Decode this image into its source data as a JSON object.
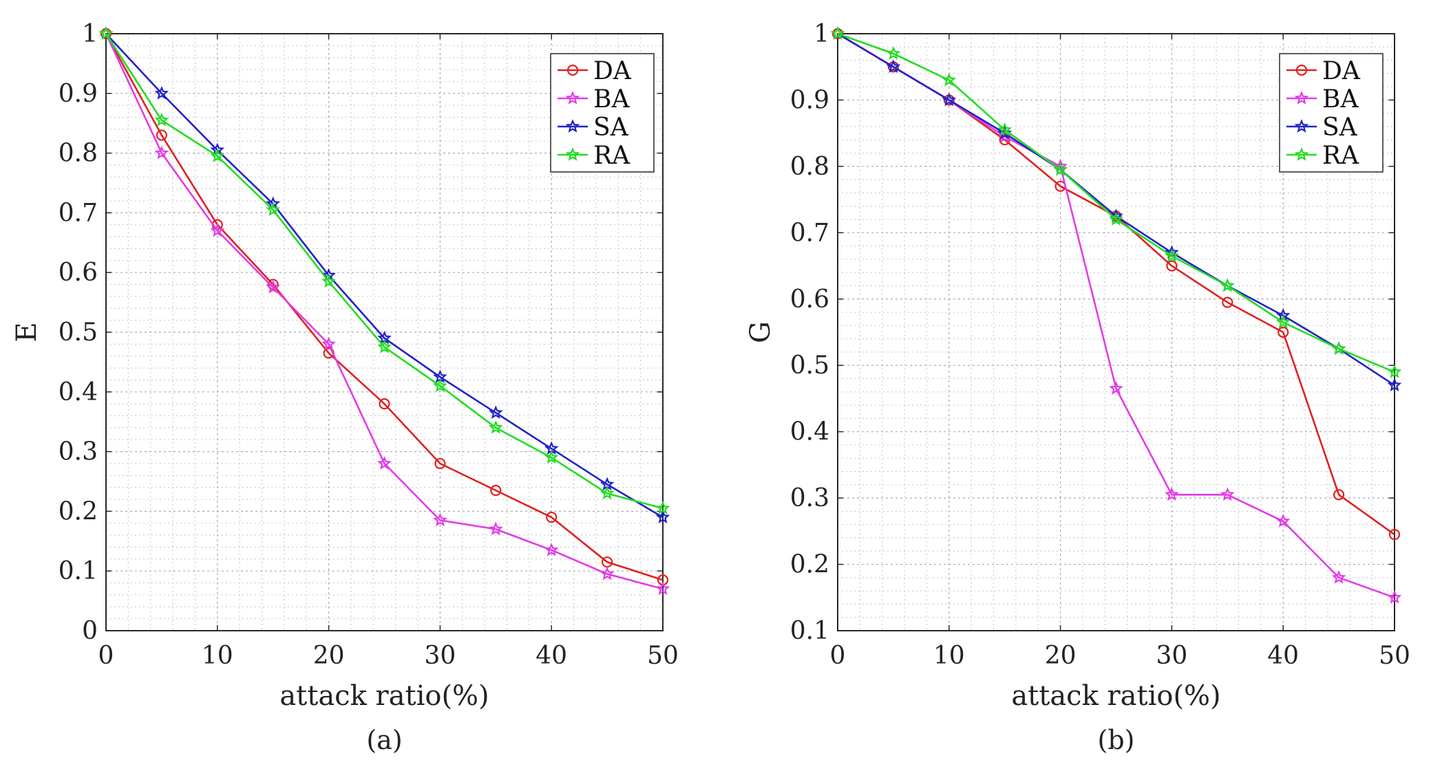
{
  "chart_data": [
    {
      "type": "line",
      "caption": "(a)",
      "xlabel": "attack ratio(%)",
      "ylabel": "E",
      "xlim": [
        0,
        50
      ],
      "ylim": [
        0,
        1
      ],
      "x": [
        0,
        5,
        10,
        15,
        20,
        25,
        30,
        35,
        40,
        45,
        50
      ],
      "xticks": [
        "0",
        "10",
        "20",
        "30",
        "40",
        "50"
      ],
      "yticks": [
        "0",
        "0.1",
        "0.2",
        "0.3",
        "0.4",
        "0.5",
        "0.6",
        "0.7",
        "0.8",
        "0.9",
        "1"
      ],
      "legend_position": "top-right",
      "grid": true,
      "series": [
        {
          "name": "DA",
          "color": "#e02020",
          "marker": "circle",
          "values": [
            1.0,
            0.83,
            0.68,
            0.58,
            0.465,
            0.38,
            0.28,
            0.235,
            0.19,
            0.115,
            0.085
          ]
        },
        {
          "name": "BA",
          "color": "#e23ce8",
          "marker": "star",
          "values": [
            1.0,
            0.8,
            0.67,
            0.575,
            0.48,
            0.28,
            0.185,
            0.17,
            0.135,
            0.095,
            0.07
          ]
        },
        {
          "name": "SA",
          "color": "#2222c8",
          "marker": "star",
          "values": [
            1.0,
            0.9,
            0.805,
            0.715,
            0.595,
            0.49,
            0.425,
            0.365,
            0.305,
            0.245,
            0.19
          ]
        },
        {
          "name": "RA",
          "color": "#22dd22",
          "marker": "star",
          "values": [
            1.0,
            0.855,
            0.795,
            0.705,
            0.585,
            0.475,
            0.41,
            0.34,
            0.29,
            0.23,
            0.205
          ]
        }
      ]
    },
    {
      "type": "line",
      "caption": "(b)",
      "xlabel": "attack ratio(%)",
      "ylabel": "G",
      "xlim": [
        0,
        50
      ],
      "ylim": [
        0.1,
        1
      ],
      "x": [
        0,
        5,
        10,
        15,
        20,
        25,
        30,
        35,
        40,
        45,
        50
      ],
      "xticks": [
        "0",
        "10",
        "20",
        "30",
        "40",
        "50"
      ],
      "yticks": [
        "0.1",
        "0.2",
        "0.3",
        "0.4",
        "0.5",
        "0.6",
        "0.7",
        "0.8",
        "0.9",
        "1"
      ],
      "legend_position": "top-right",
      "grid": true,
      "series": [
        {
          "name": "DA",
          "color": "#e02020",
          "marker": "circle",
          "values": [
            1.0,
            0.95,
            0.9,
            0.84,
            0.77,
            0.725,
            0.65,
            0.595,
            0.55,
            0.305,
            0.245
          ]
        },
        {
          "name": "BA",
          "color": "#e23ce8",
          "marker": "star",
          "values": [
            1.0,
            0.95,
            0.9,
            0.845,
            0.8,
            0.465,
            0.305,
            0.305,
            0.265,
            0.18,
            0.15
          ]
        },
        {
          "name": "SA",
          "color": "#2222c8",
          "marker": "star",
          "values": [
            1.0,
            0.95,
            0.9,
            0.85,
            0.795,
            0.725,
            0.67,
            0.62,
            0.575,
            0.525,
            0.47
          ]
        },
        {
          "name": "RA",
          "color": "#22dd22",
          "marker": "star",
          "values": [
            1.0,
            0.97,
            0.93,
            0.855,
            0.795,
            0.72,
            0.665,
            0.62,
            0.565,
            0.525,
            0.49
          ]
        }
      ]
    }
  ]
}
